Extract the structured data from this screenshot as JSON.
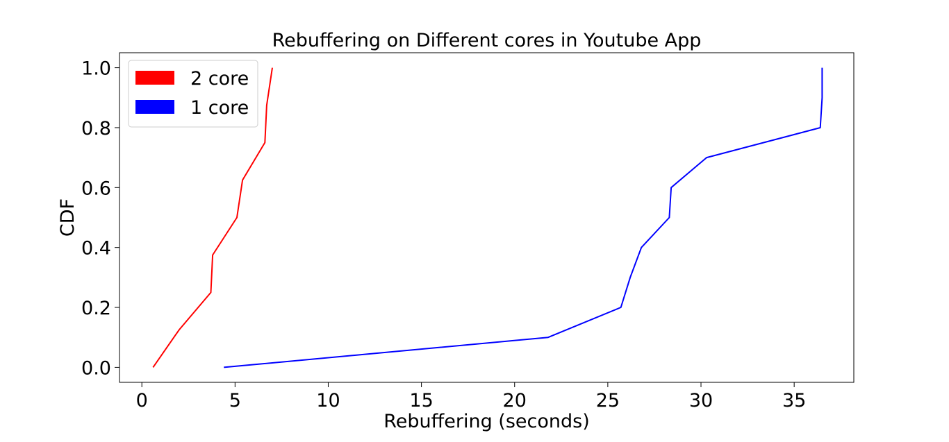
{
  "chart_data": {
    "type": "line",
    "title": "Rebuffering on Different cores in Youtube App",
    "xlabel": "Rebuffering (seconds)",
    "ylabel": "CDF",
    "xlim": [
      -1.2,
      38.2
    ],
    "ylim": [
      -0.05,
      1.05
    ],
    "xticks": [
      0,
      5,
      10,
      15,
      20,
      25,
      30,
      35
    ],
    "yticks": [
      0.0,
      0.2,
      0.4,
      0.6,
      0.8,
      1.0
    ],
    "xtick_labels": [
      "0",
      "5",
      "10",
      "15",
      "20",
      "25",
      "30",
      "35"
    ],
    "ytick_labels": [
      "0.0",
      "0.2",
      "0.4",
      "0.6",
      "0.8",
      "1.0"
    ],
    "grid": false,
    "legend_position": "top-left",
    "series": [
      {
        "name": "2 core",
        "color": "#ff0000",
        "x": [
          0.6,
          2.0,
          3.7,
          3.8,
          5.1,
          5.4,
          6.6,
          6.7,
          7.0
        ],
        "y": [
          0.0,
          0.125,
          0.25,
          0.375,
          0.5,
          0.625,
          0.75,
          0.875,
          1.0
        ]
      },
      {
        "name": "1 core",
        "color": "#0000ff",
        "x": [
          4.4,
          21.8,
          25.7,
          26.2,
          26.8,
          28.3,
          28.4,
          30.3,
          36.4,
          36.5,
          36.5
        ],
        "y": [
          0.0,
          0.1,
          0.2,
          0.3,
          0.4,
          0.5,
          0.6,
          0.7,
          0.8,
          0.9,
          1.0
        ]
      }
    ]
  }
}
